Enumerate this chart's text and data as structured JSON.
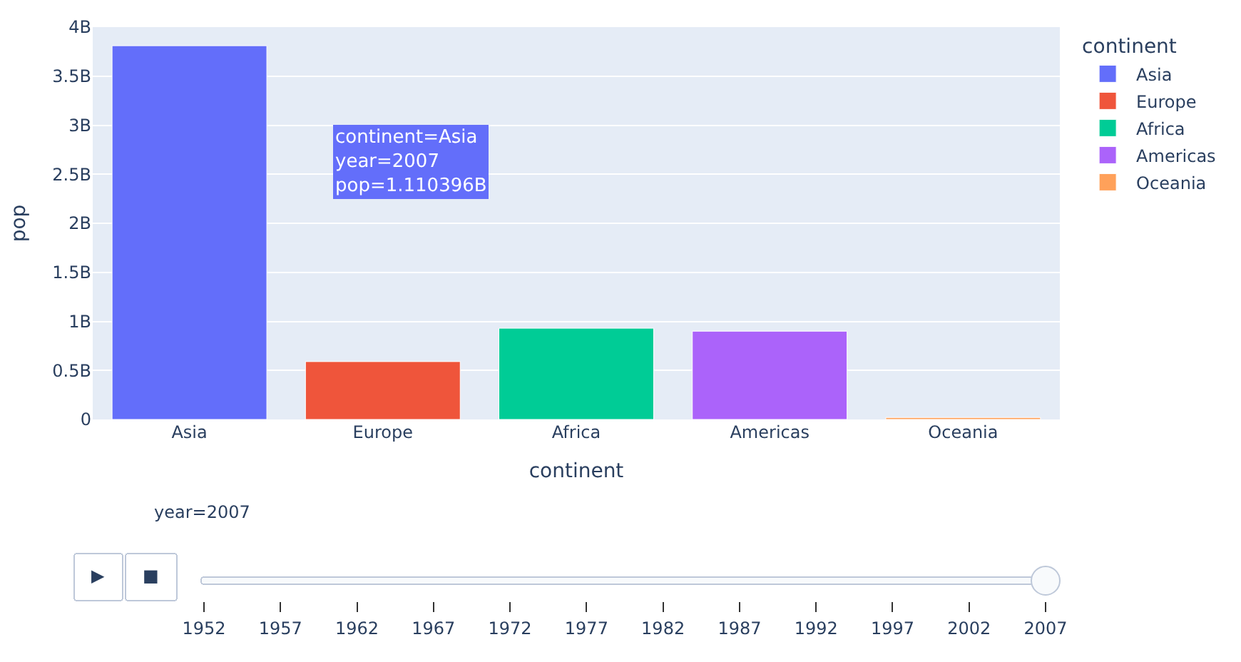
{
  "chart_data": {
    "type": "bar",
    "xlabel": "continent",
    "ylabel": "pop",
    "legend_title": "continent",
    "legend": "top right",
    "grid": "y",
    "categories": [
      "Asia",
      "Europe",
      "Africa",
      "Americas",
      "Oceania"
    ],
    "series": [
      {
        "name": "Asia",
        "color": "#636efa",
        "values": [
          3.81,
          null,
          null,
          null,
          null
        ]
      },
      {
        "name": "Europe",
        "color": "#ef553b",
        "values": [
          null,
          0.59,
          null,
          null,
          null
        ]
      },
      {
        "name": "Africa",
        "color": "#00cc96",
        "values": [
          null,
          null,
          0.93,
          null,
          null
        ]
      },
      {
        "name": "Americas",
        "color": "#ab63fa",
        "values": [
          null,
          null,
          null,
          0.9,
          null
        ]
      },
      {
        "name": "Oceania",
        "color": "#ffa15a",
        "values": [
          null,
          null,
          null,
          null,
          0.02
        ]
      }
    ],
    "ylim": [
      0,
      4
    ],
    "yticks": [
      0,
      {
        "value": 0.5,
        "label": "0.5B"
      },
      {
        "value": 1,
        "label": "1B"
      },
      {
        "value": 1.5,
        "label": "1.5B"
      },
      {
        "value": 2,
        "label": "2B"
      },
      {
        "value": 2.5,
        "label": "2.5B"
      },
      {
        "value": 3,
        "label": "3B"
      },
      {
        "value": 3.5,
        "label": "3.5B"
      },
      {
        "value": 4,
        "label": "4B"
      }
    ],
    "annotations": [
      "continent=Asia\nyear=2007\npop=1.110396B",
      "year=2007",
      "▶",
      "■",
      "1952",
      "1957",
      "1962",
      "1967",
      "1972",
      "1977",
      "1982",
      "1987",
      "1992",
      "1997",
      "2002",
      "2007"
    ]
  }
}
